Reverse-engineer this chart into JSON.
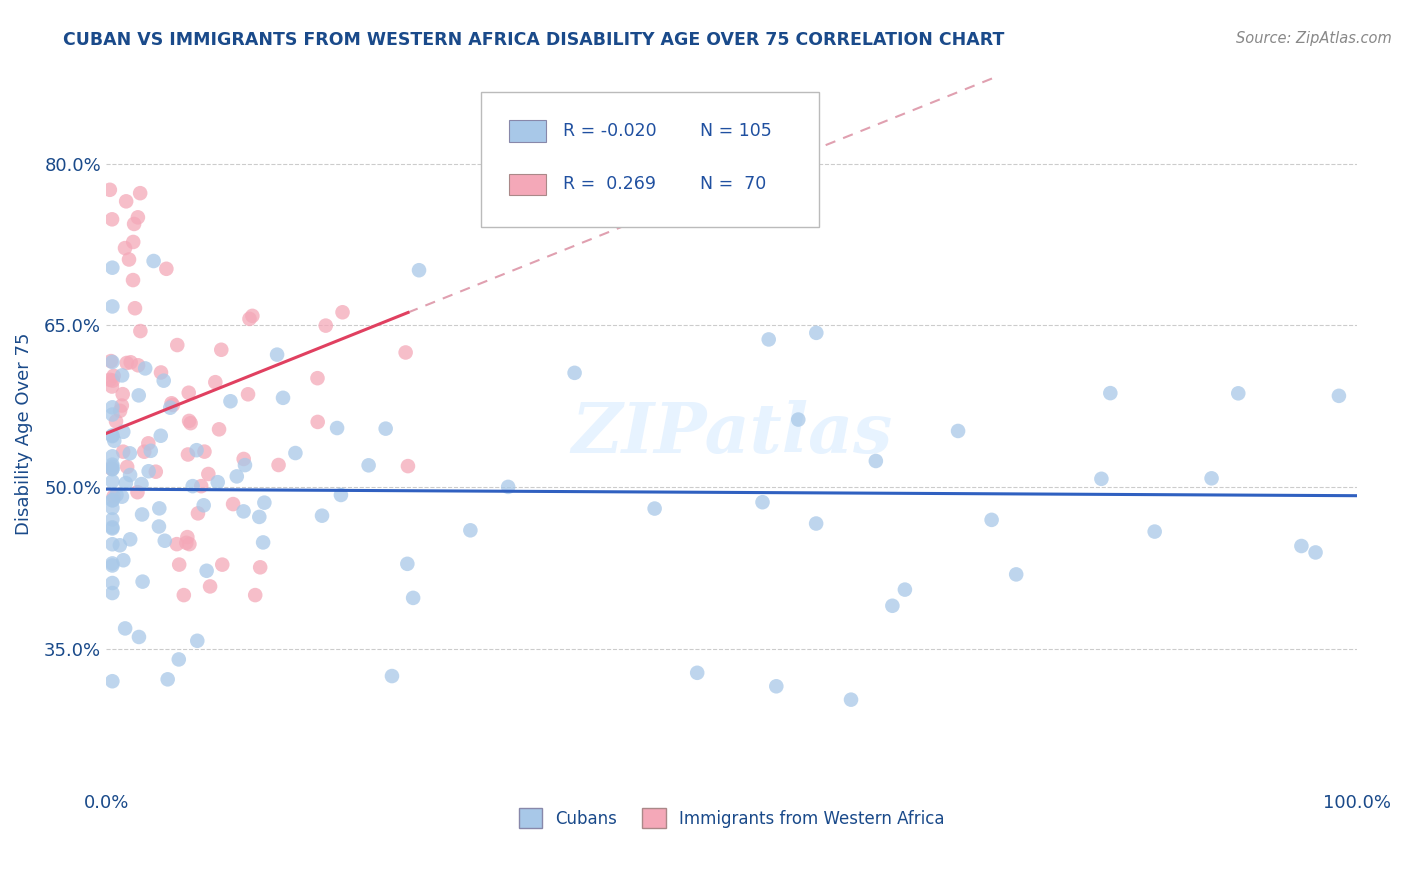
{
  "title": "CUBAN VS IMMIGRANTS FROM WESTERN AFRICA DISABILITY AGE OVER 75 CORRELATION CHART",
  "source": "Source: ZipAtlas.com",
  "ylabel": "Disability Age Over 75",
  "xlim": [
    0.0,
    1.0
  ],
  "ylim": [
    0.22,
    0.88
  ],
  "yticks": [
    0.35,
    0.5,
    0.65,
    0.8
  ],
  "ytick_labels": [
    "35.0%",
    "50.0%",
    "65.0%",
    "80.0%"
  ],
  "xticks": [
    0.0,
    0.25,
    0.5,
    0.75,
    1.0
  ],
  "xtick_labels": [
    "0.0%",
    "",
    "",
    "",
    "100.0%"
  ],
  "legend_labels": [
    "Cubans",
    "Immigrants from Western Africa"
  ],
  "R_cubans": -0.02,
  "N_cubans": 105,
  "R_western": 0.269,
  "N_western": 70,
  "color_cubans": "#a8c8e8",
  "color_western": "#f4a8b8",
  "line_color_cubans": "#3060c0",
  "line_color_western": "#e04060",
  "line_color_western_dashed": "#e0a0b0",
  "background_color": "#ffffff",
  "title_color": "#1a4a8a",
  "source_color": "#888888",
  "axis_label_color": "#1a4a8a",
  "tick_label_color": "#1a4a8a",
  "legend_R_color": "#2050a0",
  "grid_color": "#cccccc"
}
